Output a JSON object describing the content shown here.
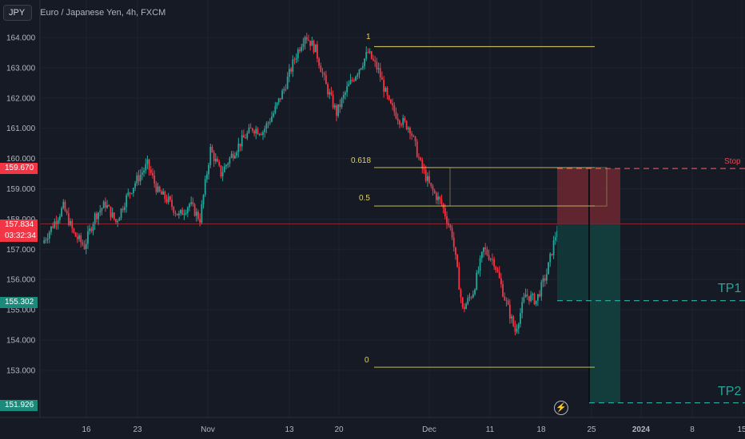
{
  "header": {
    "symbol": "JPY",
    "title": "Euro / Japanese Yen, 4h, FXCM"
  },
  "price_tags": {
    "stop": "159.670",
    "current": "157.834",
    "countdown": "03:32:34",
    "tp1": "155.302",
    "tp2": "151.926",
    "hidden_tick": "158.000"
  },
  "fib_levels": [
    {
      "label": "1",
      "price": 163.7
    },
    {
      "label": "0.618",
      "price": 159.7
    },
    {
      "label": "0.5",
      "price": 158.43
    },
    {
      "label": "0",
      "price": 153.1
    }
  ],
  "trade_labels": {
    "stop": "Stop",
    "tp1": "TP1",
    "tp2": "TP2"
  },
  "colors": {
    "background": "#161a25",
    "up": "#26a69a",
    "down": "#f23645",
    "fib": "#e3d35a",
    "stop": "#f2454a",
    "target": "#26a69a"
  },
  "chart_data": {
    "type": "candlestick",
    "y_ticks": [
      "164.000",
      "163.000",
      "162.000",
      "161.000",
      "160.000",
      "159.000",
      "158.000",
      "157.000",
      "156.000",
      "155.000",
      "154.000",
      "153.000"
    ],
    "x_ticks": [
      "16",
      "23",
      "Nov",
      "13",
      "20",
      "Dec",
      "11",
      "18",
      "25",
      "2024",
      "8",
      "15"
    ],
    "ylim": [
      151.5,
      165
    ],
    "ohlc_path": [
      {
        "date": "Oct 10",
        "close": 157.2
      },
      {
        "date": "Oct 12",
        "close": 157.8
      },
      {
        "date": "Oct 13",
        "close": 158.4
      },
      {
        "date": "Oct 16",
        "close": 157.5
      },
      {
        "date": "Oct 17",
        "close": 157.1
      },
      {
        "date": "Oct 19",
        "close": 158.1
      },
      {
        "date": "Oct 20",
        "close": 158.5
      },
      {
        "date": "Oct 23",
        "close": 157.9
      },
      {
        "date": "Oct 24",
        "close": 158.7
      },
      {
        "date": "Oct 25",
        "close": 159.3
      },
      {
        "date": "Oct 26",
        "close": 159.8
      },
      {
        "date": "Oct 27",
        "close": 158.9
      },
      {
        "date": "Oct 30",
        "close": 158.6
      },
      {
        "date": "Oct 31",
        "close": 158.1
      },
      {
        "date": "Nov 1",
        "close": 158.5
      },
      {
        "date": "Nov 2",
        "close": 158.0
      },
      {
        "date": "Nov 3",
        "close": 160.3
      },
      {
        "date": "Nov 6",
        "close": 159.5
      },
      {
        "date": "Nov 7",
        "close": 160.1
      },
      {
        "date": "Nov 8",
        "close": 160.6
      },
      {
        "date": "Nov 9",
        "close": 161.0
      },
      {
        "date": "Nov 10",
        "close": 160.9
      },
      {
        "date": "Nov 13",
        "close": 161.5
      },
      {
        "date": "Nov 14",
        "close": 162.3
      },
      {
        "date": "Nov 15",
        "close": 163.3
      },
      {
        "date": "Nov 16",
        "close": 164.1
      },
      {
        "date": "Nov 17",
        "close": 163.6
      },
      {
        "date": "Nov 20",
        "close": 162.4
      },
      {
        "date": "Nov 21",
        "close": 161.5
      },
      {
        "date": "Nov 22",
        "close": 162.3
      },
      {
        "date": "Nov 23",
        "close": 162.9
      },
      {
        "date": "Nov 24",
        "close": 163.5
      },
      {
        "date": "Nov 27",
        "close": 162.9
      },
      {
        "date": "Nov 28",
        "close": 161.8
      },
      {
        "date": "Nov 29",
        "close": 161.3
      },
      {
        "date": "Nov 30",
        "close": 161.0
      },
      {
        "date": "Dec 1",
        "close": 159.8
      },
      {
        "date": "Dec 4",
        "close": 159.0
      },
      {
        "date": "Dec 5",
        "close": 158.5
      },
      {
        "date": "Dec 6",
        "close": 157.5
      },
      {
        "date": "Dec 7",
        "close": 155.0
      },
      {
        "date": "Dec 8",
        "close": 155.6
      },
      {
        "date": "Dec 11",
        "close": 157.0
      },
      {
        "date": "Dec 12",
        "close": 156.6
      },
      {
        "date": "Dec 13",
        "close": 155.4
      },
      {
        "date": "Dec 14",
        "close": 154.3
      },
      {
        "date": "Dec 15",
        "close": 155.5
      },
      {
        "date": "Dec 18",
        "close": 155.3
      },
      {
        "date": "Dec 19",
        "close": 156.2
      },
      {
        "date": "Dec 20",
        "close": 157.7
      }
    ],
    "position": {
      "entry": 157.834,
      "stop": 159.67,
      "tp1": 155.302,
      "tp2": 151.926
    }
  }
}
